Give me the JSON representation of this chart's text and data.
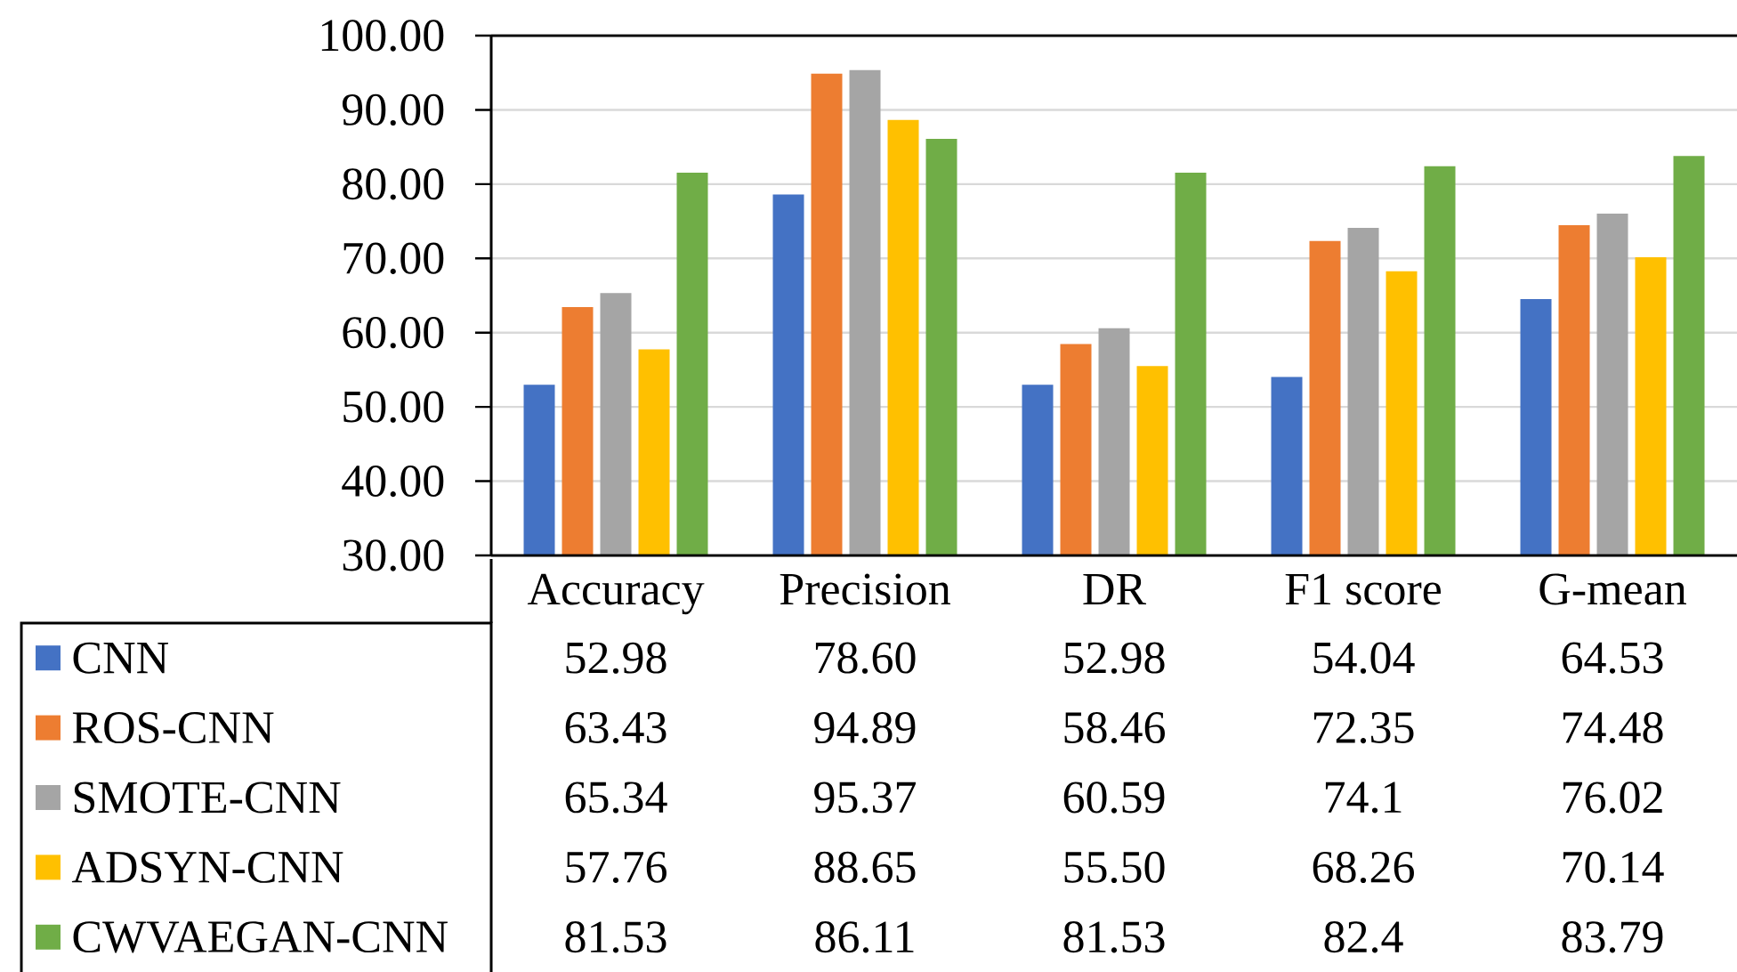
{
  "chart_data": {
    "type": "bar",
    "categories": [
      "Accuracy",
      "Precision",
      "DR",
      "F1 score",
      "G-mean"
    ],
    "series": [
      {
        "name": "CNN",
        "color": "#4472c4",
        "values": [
          52.98,
          78.6,
          52.98,
          54.04,
          64.53
        ],
        "value_labels": [
          "52.98",
          "78.60",
          "52.98",
          "54.04",
          "64.53"
        ]
      },
      {
        "name": "ROS-CNN",
        "color": "#ed7d31",
        "values": [
          63.43,
          94.89,
          58.46,
          72.35,
          74.48
        ],
        "value_labels": [
          "63.43",
          "94.89",
          "58.46",
          "72.35",
          "74.48"
        ]
      },
      {
        "name": "SMOTE-CNN",
        "color": "#a5a5a5",
        "values": [
          65.34,
          95.37,
          60.59,
          74.1,
          76.02
        ],
        "value_labels": [
          "65.34",
          "95.37",
          "60.59",
          "74.1",
          "76.02"
        ]
      },
      {
        "name": "ADSYN-CNN",
        "color": "#ffc000",
        "values": [
          57.76,
          88.65,
          55.5,
          68.26,
          70.14
        ],
        "value_labels": [
          "57.76",
          "88.65",
          "55.50",
          "68.26",
          "70.14"
        ]
      },
      {
        "name": "CWVAEGAN-CNN",
        "color": "#70ad47",
        "values": [
          81.53,
          86.11,
          81.53,
          82.4,
          83.79
        ],
        "value_labels": [
          "81.53",
          "86.11",
          "81.53",
          "82.4",
          "83.79"
        ]
      }
    ],
    "ylim": [
      30,
      100
    ],
    "yticks": [
      {
        "value": 30,
        "label": "30.00"
      },
      {
        "value": 40,
        "label": "40.00"
      },
      {
        "value": 50,
        "label": "50.00"
      },
      {
        "value": 60,
        "label": "60.00"
      },
      {
        "value": 70,
        "label": "70.00"
      },
      {
        "value": 80,
        "label": "80.00"
      },
      {
        "value": 90,
        "label": "90.00"
      },
      {
        "value": 100,
        "label": "100.00"
      }
    ],
    "grid": "y",
    "legend": "bottom"
  }
}
